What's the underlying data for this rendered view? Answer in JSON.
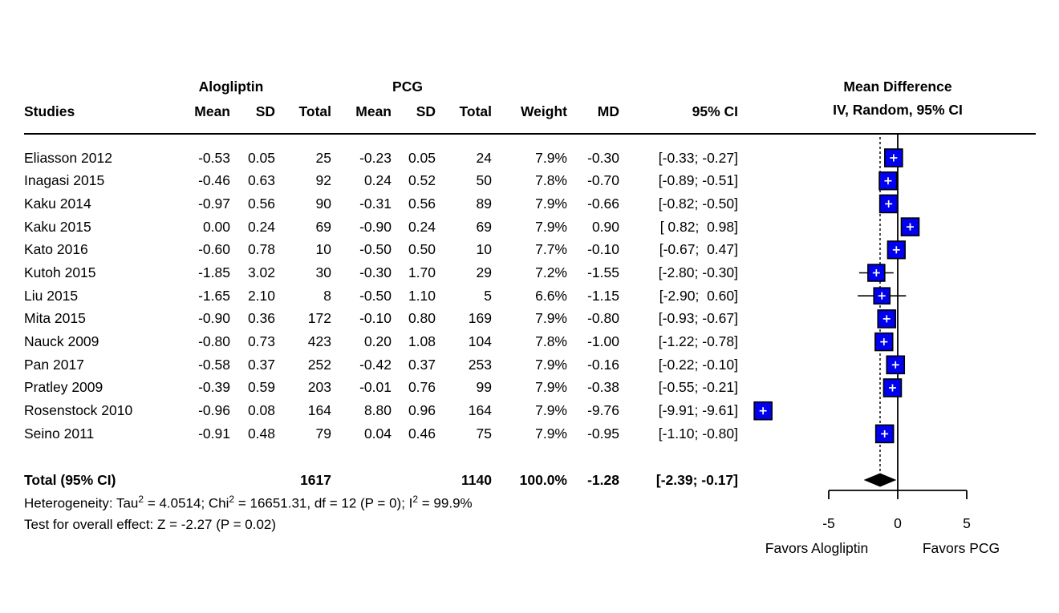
{
  "header": {
    "studies": "Studies",
    "group1": "Alogliptin",
    "group2": "PCG",
    "cols": {
      "mean": "Mean",
      "sd": "SD",
      "total": "Total",
      "weight": "Weight",
      "md": "MD",
      "ci": "95% CI"
    },
    "plot_title_line1": "Mean Difference",
    "plot_title_line2": "IV, Random, 95% CI"
  },
  "chart_data": {
    "type": "forest",
    "x_axis": {
      "label_left": "Favors Alogliptin",
      "label_right": "Favors PCG",
      "ticks": [
        -5,
        0,
        5
      ],
      "tick_labels": [
        "-5",
        "0",
        "5"
      ],
      "zero_line": 0
    },
    "studies": [
      {
        "name": "Eliasson 2012",
        "mean1": "-0.53",
        "sd1": "0.05",
        "total1": "25",
        "mean2": "-0.23",
        "sd2": "0.05",
        "total2": "24",
        "weight": "7.9%",
        "md": "-0.30",
        "ci": "[-0.33; -0.27]",
        "md_val": -0.3,
        "ci_low": -0.33,
        "ci_high": -0.27,
        "weight_val": 7.9
      },
      {
        "name": "Inagasi 2015",
        "mean1": "-0.46",
        "sd1": "0.63",
        "total1": "92",
        "mean2": "0.24",
        "sd2": "0.52",
        "total2": "50",
        "weight": "7.8%",
        "md": "-0.70",
        "ci": "[-0.89; -0.51]",
        "md_val": -0.7,
        "ci_low": -0.89,
        "ci_high": -0.51,
        "weight_val": 7.8
      },
      {
        "name": "Kaku 2014",
        "mean1": "-0.97",
        "sd1": "0.56",
        "total1": "90",
        "mean2": "-0.31",
        "sd2": "0.56",
        "total2": "89",
        "weight": "7.9%",
        "md": "-0.66",
        "ci": "[-0.82; -0.50]",
        "md_val": -0.66,
        "ci_low": -0.82,
        "ci_high": -0.5,
        "weight_val": 7.9
      },
      {
        "name": "Kaku 2015",
        "mean1": "0.00",
        "sd1": "0.24",
        "total1": "69",
        "mean2": "-0.90",
        "sd2": "0.24",
        "total2": "69",
        "weight": "7.9%",
        "md": "0.90",
        "ci": "[ 0.82;  0.98]",
        "md_val": 0.9,
        "ci_low": 0.82,
        "ci_high": 0.98,
        "weight_val": 7.9
      },
      {
        "name": "Kato 2016",
        "mean1": "-0.60",
        "sd1": "0.78",
        "total1": "10",
        "mean2": "-0.50",
        "sd2": "0.50",
        "total2": "10",
        "weight": "7.7%",
        "md": "-0.10",
        "ci": "[-0.67;  0.47]",
        "md_val": -0.1,
        "ci_low": -0.67,
        "ci_high": 0.47,
        "weight_val": 7.7
      },
      {
        "name": "Kutoh 2015",
        "mean1": "-1.85",
        "sd1": "3.02",
        "total1": "30",
        "mean2": "-0.30",
        "sd2": "1.70",
        "total2": "29",
        "weight": "7.2%",
        "md": "-1.55",
        "ci": "[-2.80; -0.30]",
        "md_val": -1.55,
        "ci_low": -2.8,
        "ci_high": -0.3,
        "weight_val": 7.2
      },
      {
        "name": "Liu 2015",
        "mean1": "-1.65",
        "sd1": "2.10",
        "total1": "8",
        "mean2": "-0.50",
        "sd2": "1.10",
        "total2": "5",
        "weight": "6.6%",
        "md": "-1.15",
        "ci": "[-2.90;  0.60]",
        "md_val": -1.15,
        "ci_low": -2.9,
        "ci_high": 0.6,
        "weight_val": 6.6
      },
      {
        "name": "Mita 2015",
        "mean1": "-0.90",
        "sd1": "0.36",
        "total1": "172",
        "mean2": "-0.10",
        "sd2": "0.80",
        "total2": "169",
        "weight": "7.9%",
        "md": "-0.80",
        "ci": "[-0.93; -0.67]",
        "md_val": -0.8,
        "ci_low": -0.93,
        "ci_high": -0.67,
        "weight_val": 7.9
      },
      {
        "name": "Nauck 2009",
        "mean1": "-0.80",
        "sd1": "0.73",
        "total1": "423",
        "mean2": "0.20",
        "sd2": "1.08",
        "total2": "104",
        "weight": "7.8%",
        "md": "-1.00",
        "ci": "[-1.22; -0.78]",
        "md_val": -1.0,
        "ci_low": -1.22,
        "ci_high": -0.78,
        "weight_val": 7.8
      },
      {
        "name": "Pan 2017",
        "mean1": "-0.58",
        "sd1": "0.37",
        "total1": "252",
        "mean2": "-0.42",
        "sd2": "0.37",
        "total2": "253",
        "weight": "7.9%",
        "md": "-0.16",
        "ci": "[-0.22; -0.10]",
        "md_val": -0.16,
        "ci_low": -0.22,
        "ci_high": -0.1,
        "weight_val": 7.9
      },
      {
        "name": "Pratley 2009",
        "mean1": "-0.39",
        "sd1": "0.59",
        "total1": "203",
        "mean2": "-0.01",
        "sd2": "0.76",
        "total2": "99",
        "weight": "7.9%",
        "md": "-0.38",
        "ci": "[-0.55; -0.21]",
        "md_val": -0.38,
        "ci_low": -0.55,
        "ci_high": -0.21,
        "weight_val": 7.9
      },
      {
        "name": "Rosenstock 2010",
        "mean1": "-0.96",
        "sd1": "0.08",
        "total1": "164",
        "mean2": "8.80",
        "sd2": "0.96",
        "total2": "164",
        "weight": "7.9%",
        "md": "-9.76",
        "ci": "[-9.91; -9.61]",
        "md_val": -9.76,
        "ci_low": -9.91,
        "ci_high": -9.61,
        "weight_val": 7.9
      },
      {
        "name": "Seino 2011",
        "mean1": "-0.91",
        "sd1": "0.48",
        "total1": "79",
        "mean2": "0.04",
        "sd2": "0.46",
        "total2": "75",
        "weight": "7.9%",
        "md": "-0.95",
        "ci": "[-1.10; -0.80]",
        "md_val": -0.95,
        "ci_low": -1.1,
        "ci_high": -0.8,
        "weight_val": 7.9
      }
    ],
    "total": {
      "label": "Total (95% CI)",
      "total1": "1617",
      "total2": "1140",
      "weight": "100.0%",
      "md": "-1.28",
      "ci": "[-2.39; -0.17]",
      "md_val": -1.28,
      "ci_low": -2.39,
      "ci_high": -0.17
    },
    "colors": {
      "square_fill": "#0000EE",
      "square_border": "#000000",
      "marker_cross": "#FFFFFF",
      "diamond": "#000000",
      "lines": "#000000"
    }
  },
  "footer": {
    "heterogeneity": {
      "p1": "Heterogeneity: Tau",
      "s1": "2",
      "p2": " = 4.0514; Chi",
      "s2": "2",
      "p3": " = 16651.31, df = 12 (P = 0); I",
      "s3": "2",
      "p4": " = 99.9%"
    },
    "overall_effect": "Test for overall effect: Z = -2.27 (P = 0.02)"
  }
}
